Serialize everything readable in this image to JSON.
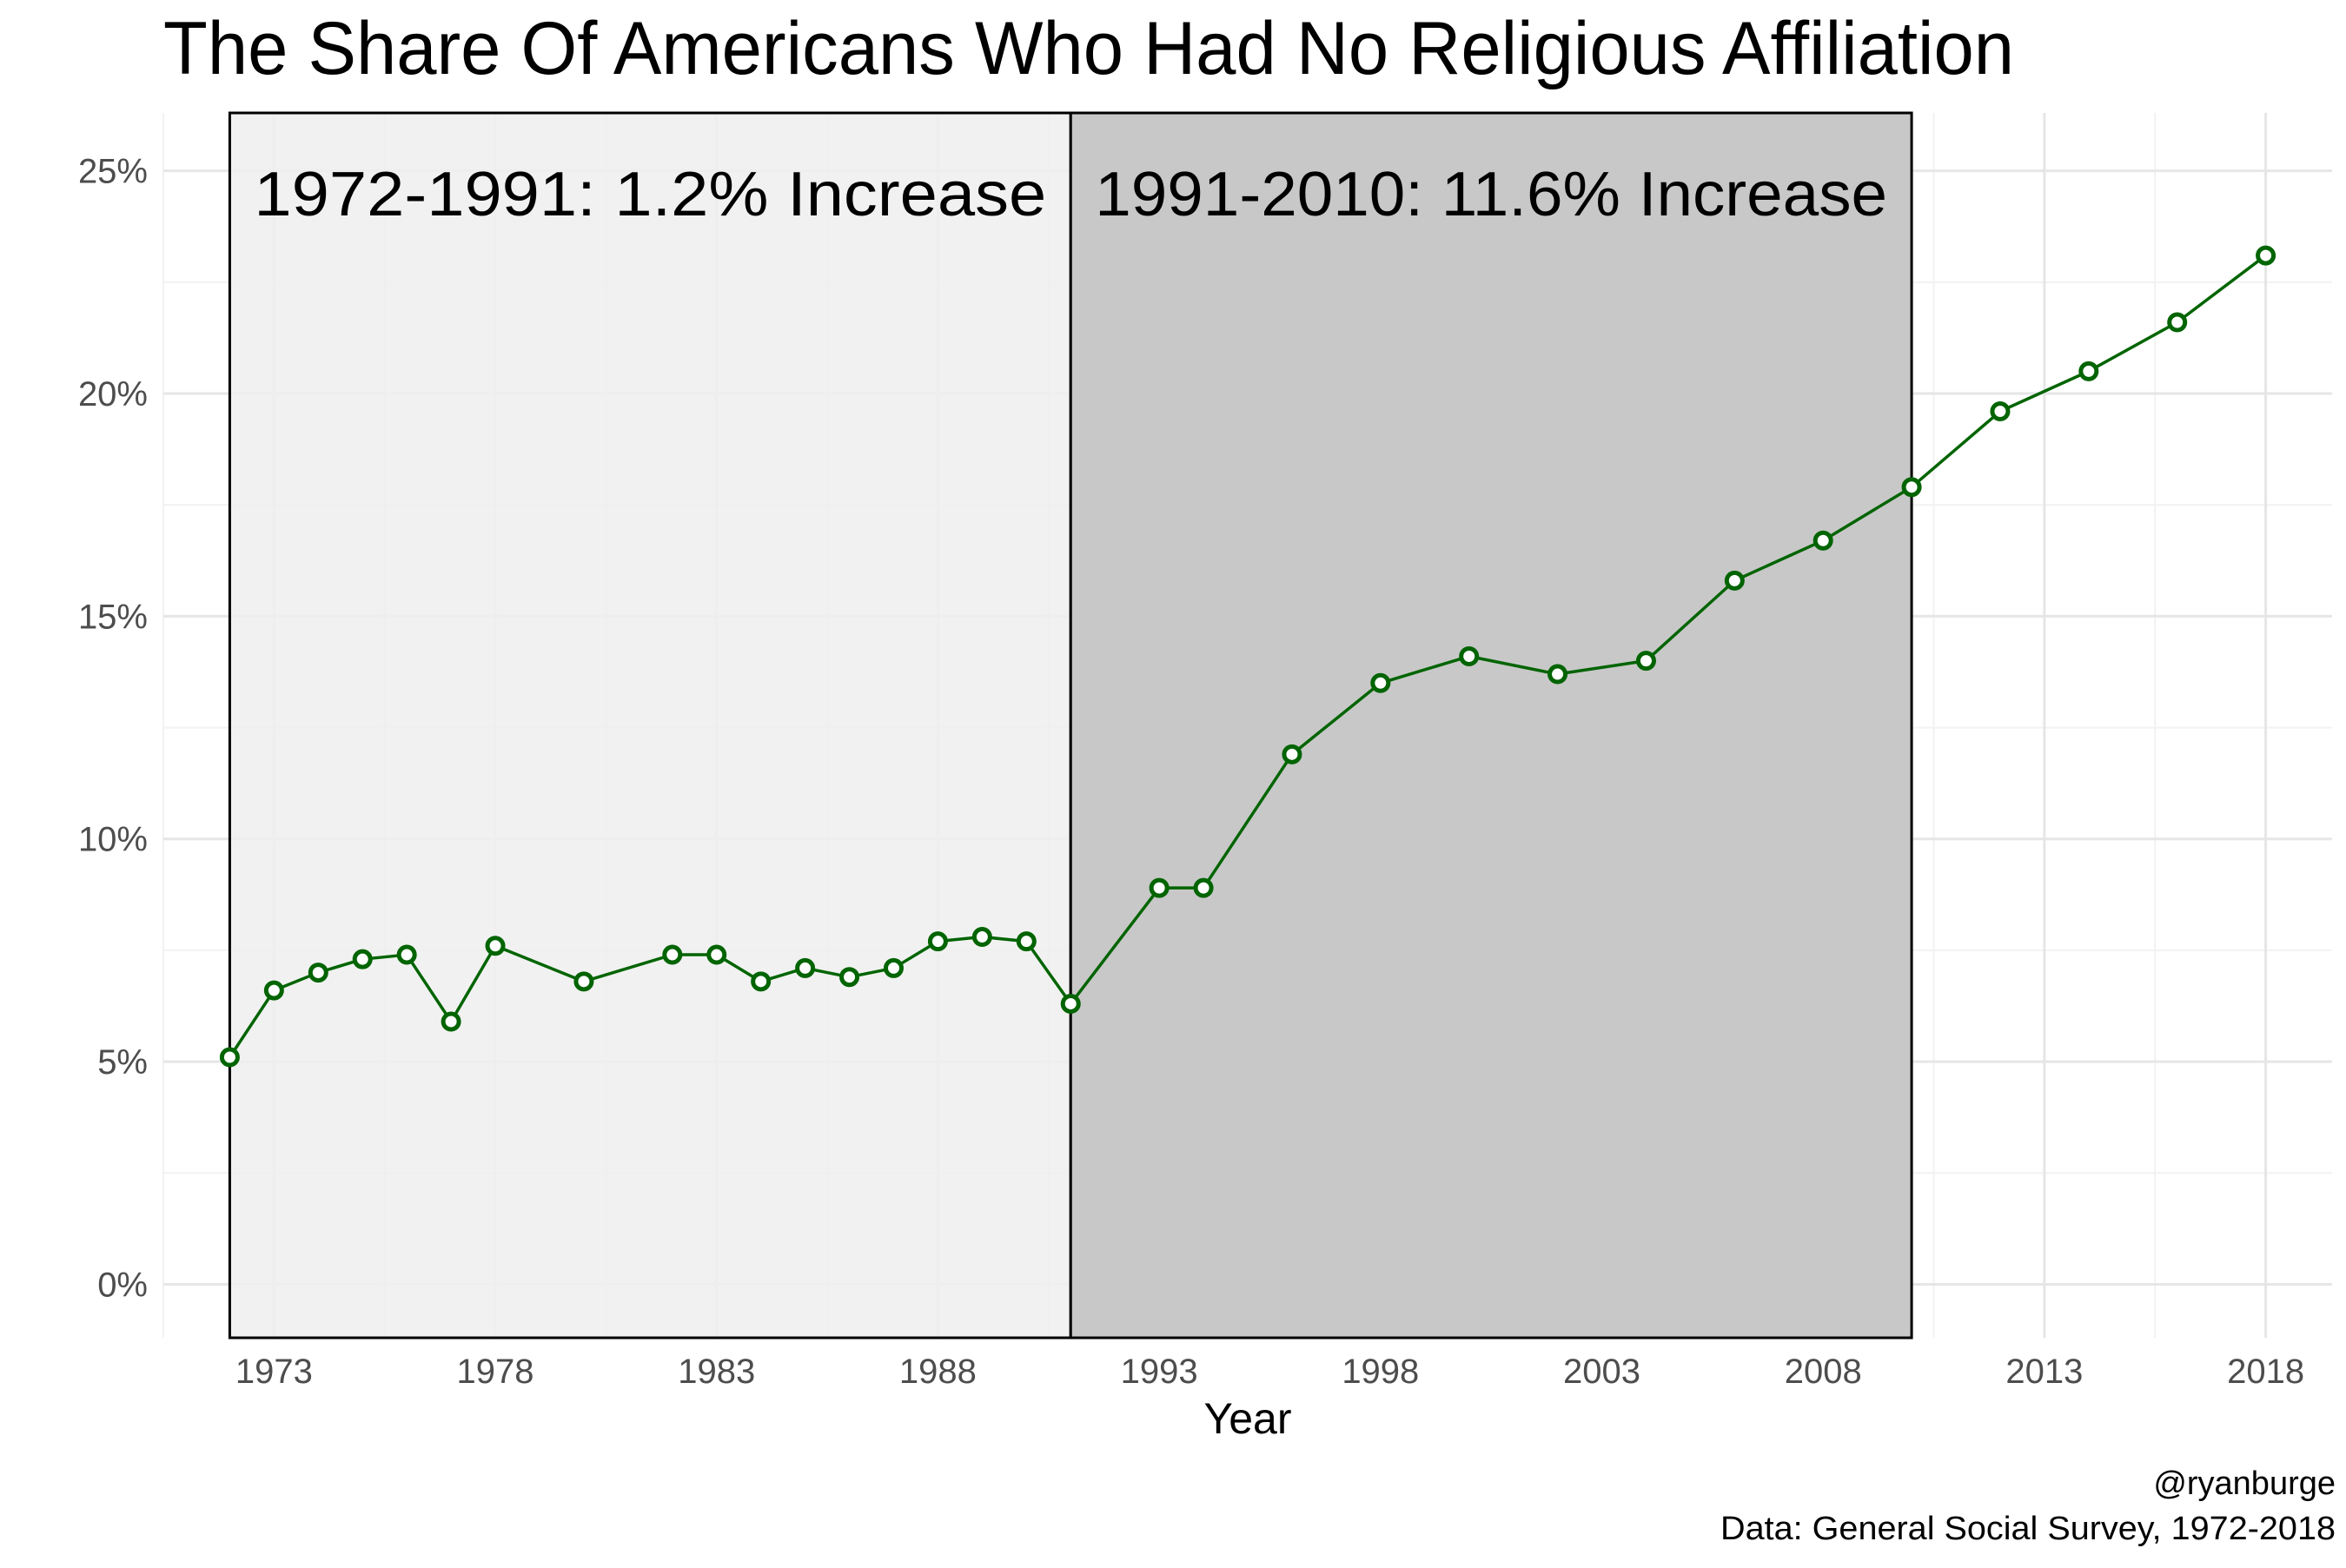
{
  "chart_data": {
    "type": "line",
    "title": "The Share Of Americans Who Had No Religious Affiliation",
    "xlabel": "Year",
    "ylabel": "",
    "x_ticks": [
      1973,
      1978,
      1983,
      1988,
      1993,
      1998,
      2003,
      2008,
      2013,
      2018
    ],
    "y_ticks": [
      0,
      5,
      10,
      15,
      20,
      25
    ],
    "y_tick_labels": [
      "0%",
      "5%",
      "10%",
      "15%",
      "20%",
      "25%"
    ],
    "xlim": [
      1970.5,
      2019.5
    ],
    "ylim": [
      -1.2,
      26.3
    ],
    "grid": true,
    "series": [
      {
        "color": "#006400",
        "x": [
          1972,
          1973,
          1974,
          1975,
          1976,
          1977,
          1978,
          1980,
          1982,
          1983,
          1984,
          1985,
          1986,
          1987,
          1988,
          1989,
          1990,
          1991,
          1993,
          1994,
          1996,
          1998,
          2000,
          2002,
          2004,
          2006,
          2008,
          2010,
          2012,
          2014,
          2016,
          2018
        ],
        "values": [
          5.1,
          6.6,
          7.0,
          7.3,
          7.4,
          5.9,
          7.6,
          6.8,
          7.4,
          7.4,
          6.8,
          7.1,
          6.9,
          7.1,
          7.7,
          7.8,
          7.7,
          6.3,
          8.9,
          8.9,
          11.9,
          13.5,
          14.1,
          13.7,
          14.0,
          15.8,
          16.7,
          17.9,
          19.6,
          20.5,
          21.6,
          23.1
        ]
      }
    ],
    "shaded_regions": [
      {
        "x_start": 1972,
        "x_end": 1991,
        "label": "1972-1991: 1.2% Increase",
        "fill": "#efefef"
      },
      {
        "x_start": 1991,
        "x_end": 2010,
        "label": "1991-2010: 11.6% Increase",
        "fill": "#c8c8c8"
      }
    ],
    "caption_lines": [
      "@ryanburge",
      "Data: General Social Survey, 1972-2018"
    ]
  }
}
